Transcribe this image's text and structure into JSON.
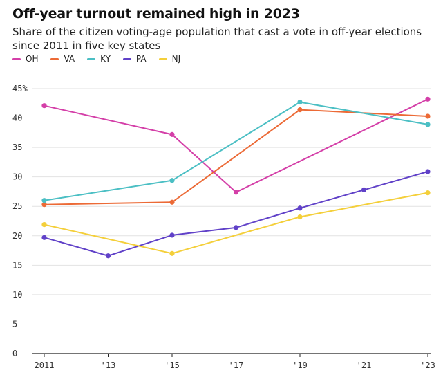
{
  "header": {
    "title": "Off-year turnout remained high in 2023",
    "subtitle": "Share of the citizen voting-age population that cast a vote in off-year elections since 2011 in five key states"
  },
  "legend": {
    "items": [
      {
        "label": "OH",
        "color": "#d43fa8"
      },
      {
        "label": "VA",
        "color": "#ec6a36"
      },
      {
        "label": "KY",
        "color": "#4bbfc4"
      },
      {
        "label": "PA",
        "color": "#6041c8"
      },
      {
        "label": "NJ",
        "color": "#f4cf3a"
      }
    ]
  },
  "chart_data": {
    "type": "line",
    "title": "Off-year turnout remained high in 2023",
    "subtitle": "Share of the citizen voting-age population that cast a vote in off-year elections since 2011 in five key states",
    "xlabel": "",
    "ylabel": "",
    "x_ticks": [
      {
        "value": 2011,
        "label": "2011"
      },
      {
        "value": 2013,
        "label": "'13"
      },
      {
        "value": 2015,
        "label": "'15"
      },
      {
        "value": 2017,
        "label": "'17"
      },
      {
        "value": 2019,
        "label": "'19"
      },
      {
        "value": 2021,
        "label": "'21"
      },
      {
        "value": 2023,
        "label": "'23"
      }
    ],
    "y_ticks": [
      {
        "value": 0,
        "label": "0"
      },
      {
        "value": 5,
        "label": "5"
      },
      {
        "value": 10,
        "label": "10"
      },
      {
        "value": 15,
        "label": "15"
      },
      {
        "value": 20,
        "label": "20"
      },
      {
        "value": 25,
        "label": "25"
      },
      {
        "value": 30,
        "label": "30"
      },
      {
        "value": 35,
        "label": "35"
      },
      {
        "value": 40,
        "label": "40"
      },
      {
        "value": 45,
        "label": "45%"
      }
    ],
    "xlim": [
      2011,
      2023
    ],
    "ylim": [
      0,
      45
    ],
    "grid": "horizontal",
    "legend_position": "top-left",
    "series": [
      {
        "name": "OH",
        "color": "#d43fa8",
        "points": [
          {
            "x": 2011,
            "y": 42.1
          },
          {
            "x": 2015,
            "y": 37.2
          },
          {
            "x": 2017,
            "y": 27.4
          },
          {
            "x": 2023,
            "y": 43.2
          }
        ]
      },
      {
        "name": "VA",
        "color": "#ec6a36",
        "points": [
          {
            "x": 2011,
            "y": 25.3
          },
          {
            "x": 2015,
            "y": 25.7
          },
          {
            "x": 2019,
            "y": 41.4
          },
          {
            "x": 2023,
            "y": 40.3
          }
        ]
      },
      {
        "name": "KY",
        "color": "#4bbfc4",
        "points": [
          {
            "x": 2011,
            "y": 26.0
          },
          {
            "x": 2015,
            "y": 29.4
          },
          {
            "x": 2019,
            "y": 42.7
          },
          {
            "x": 2023,
            "y": 38.9
          }
        ]
      },
      {
        "name": "PA",
        "color": "#6041c8",
        "points": [
          {
            "x": 2011,
            "y": 19.7
          },
          {
            "x": 2013,
            "y": 16.6
          },
          {
            "x": 2015,
            "y": 20.1
          },
          {
            "x": 2017,
            "y": 21.4
          },
          {
            "x": 2019,
            "y": 24.7
          },
          {
            "x": 2021,
            "y": 27.8
          },
          {
            "x": 2023,
            "y": 30.9
          }
        ]
      },
      {
        "name": "NJ",
        "color": "#f4cf3a",
        "points": [
          {
            "x": 2011,
            "y": 21.9
          },
          {
            "x": 2015,
            "y": 17.0
          },
          {
            "x": 2019,
            "y": 23.2
          },
          {
            "x": 2023,
            "y": 27.3
          }
        ]
      }
    ]
  }
}
